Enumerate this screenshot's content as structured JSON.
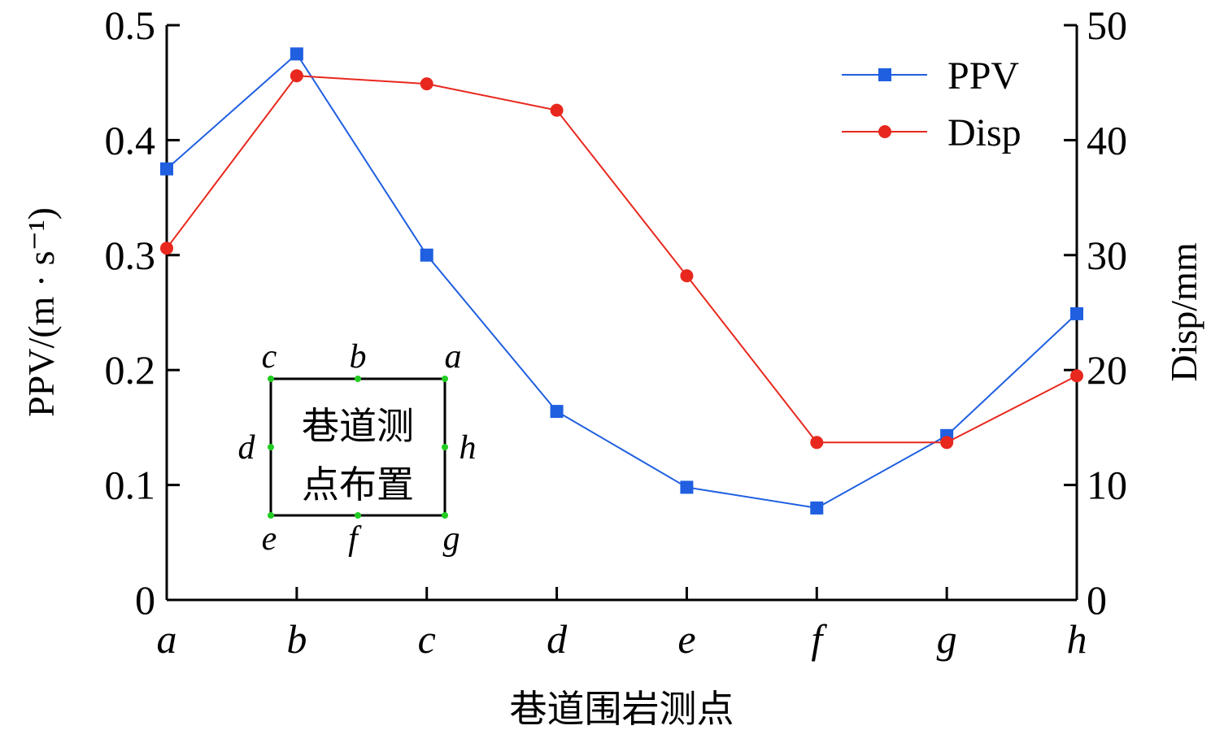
{
  "chart_data": {
    "type": "line",
    "categories": [
      "a",
      "b",
      "c",
      "d",
      "e",
      "f",
      "g",
      "h"
    ],
    "xlabel": "巷道围岩测点",
    "ylabel_left": "PPV/(m · s⁻¹)",
    "ylabel_right": "Disp/mm",
    "ylim_left": [
      0,
      0.5
    ],
    "ylim_right": [
      0,
      50
    ],
    "yticks_left": [
      "0",
      "0.1",
      "0.2",
      "0.3",
      "0.4",
      "0.5"
    ],
    "yticks_right": [
      "0",
      "10",
      "20",
      "30",
      "40",
      "50"
    ],
    "grid": false,
    "legend_position": "top-right",
    "series": [
      {
        "name": "PPV",
        "axis": "left",
        "color": "#1f5fe0",
        "marker": "square",
        "values": [
          0.375,
          0.475,
          0.3,
          0.164,
          0.098,
          0.08,
          0.143,
          0.249
        ]
      },
      {
        "name": "Disp",
        "axis": "right",
        "color": "#e8281e",
        "marker": "circle",
        "values": [
          30.6,
          45.6,
          44.9,
          42.6,
          28.2,
          13.7,
          13.7,
          19.5
        ]
      }
    ],
    "inset": {
      "text_line1": "巷道测",
      "text_line2": "点布置",
      "point_color": "#22cc22",
      "points": [
        "a",
        "b",
        "c",
        "d",
        "e",
        "f",
        "g",
        "h"
      ]
    }
  }
}
